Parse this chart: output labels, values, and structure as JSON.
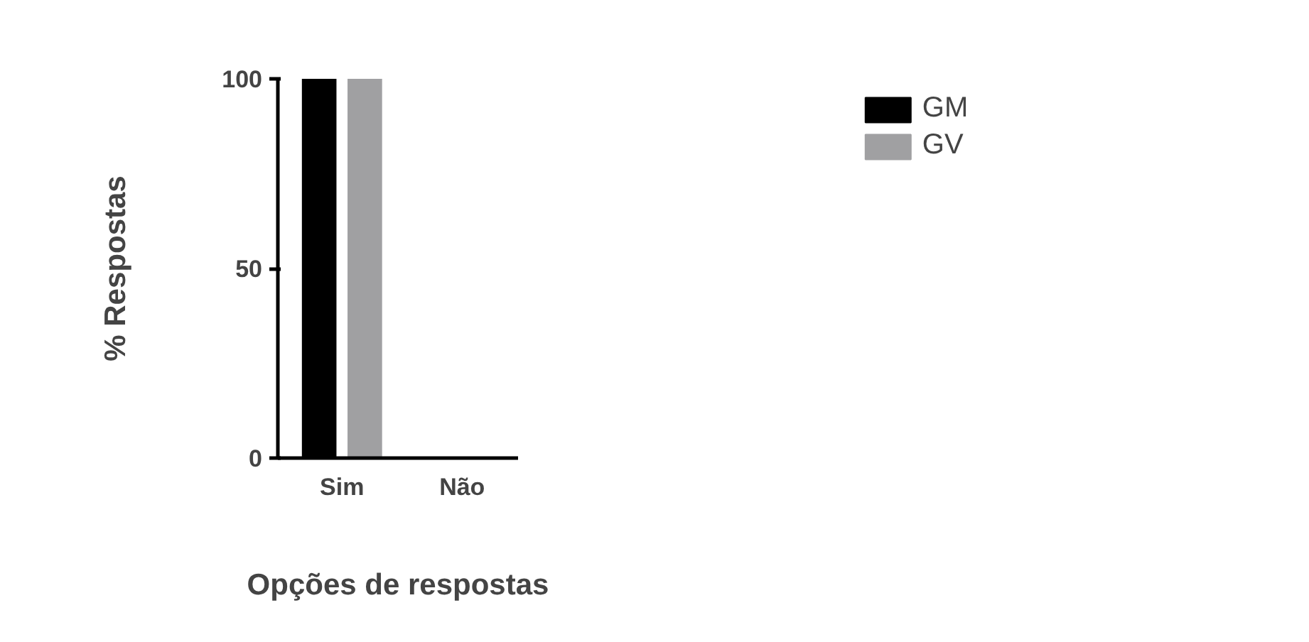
{
  "chart_data": {
    "type": "bar",
    "xlabel": "Opções de respostas",
    "ylabel": "% Respostas",
    "categories": [
      "Sim",
      "Não"
    ],
    "series": [
      {
        "name": "GM",
        "color": "#000000",
        "values": [
          100,
          0
        ]
      },
      {
        "name": "GV",
        "color": "#a0a0a2",
        "values": [
          100,
          0
        ]
      }
    ],
    "ylim": [
      0,
      100
    ],
    "yticks": [
      0,
      50,
      100
    ],
    "grid": false,
    "legend": "top right"
  }
}
